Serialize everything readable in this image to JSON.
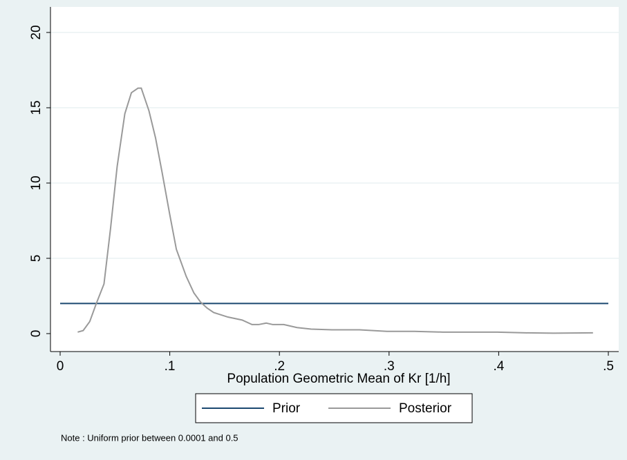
{
  "chart_data": {
    "type": "line",
    "xlabel": "Population Geometric Mean of Kr [1/h]",
    "note": "Note : Uniform prior between 0.0001 and 0.5",
    "xlim": [
      0,
      0.5
    ],
    "xticks": [
      0,
      {
        "value": 0.1,
        "label": ".1"
      },
      {
        "value": 0.2,
        "label": ".2"
      },
      {
        "value": 0.3,
        "label": ".3"
      },
      {
        "value": 0.4,
        "label": ".4"
      },
      {
        "value": 0.5,
        "label": ".5"
      }
    ],
    "ylim": [
      0,
      20
    ],
    "yticks": [
      0,
      5,
      10,
      15,
      20
    ],
    "grid": true,
    "legend": "bottom",
    "series": [
      {
        "name": "Prior",
        "color": "#1a476f",
        "x": [
          0,
          0.5
        ],
        "values": [
          2,
          2
        ]
      },
      {
        "name": "Posterior",
        "color": "#999999",
        "x": [
          0.016,
          0.021,
          0.027,
          0.033,
          0.04,
          0.046,
          0.052,
          0.059,
          0.065,
          0.071,
          0.074,
          0.081,
          0.087,
          0.093,
          0.1,
          0.106,
          0.11,
          0.115,
          0.122,
          0.128,
          0.134,
          0.14,
          0.153,
          0.166,
          0.175,
          0.181,
          0.188,
          0.194,
          0.204,
          0.216,
          0.229,
          0.248,
          0.273,
          0.298,
          0.323,
          0.349,
          0.374,
          0.399,
          0.424,
          0.45,
          0.486
        ],
        "values": [
          0.1,
          0.2,
          0.8,
          2,
          3.3,
          7,
          11.1,
          14.6,
          16,
          16.3,
          16.3,
          14.8,
          13,
          10.7,
          7.9,
          5.6,
          4.8,
          3.8,
          2.7,
          2.1,
          1.7,
          1.4,
          1.1,
          0.9,
          0.6,
          0.6,
          0.7,
          0.6,
          0.6,
          0.4,
          0.3,
          0.25,
          0.25,
          0.15,
          0.15,
          0.1,
          0.1,
          0.1,
          0.05,
          0.03,
          0.05
        ]
      }
    ]
  }
}
